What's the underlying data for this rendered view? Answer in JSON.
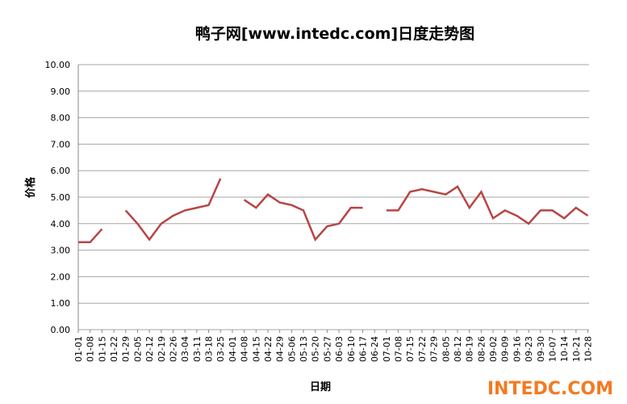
{
  "chart_data": {
    "type": "line",
    "title": "鸭子网[www.intedc.com]日度走势图",
    "x_label": "日期",
    "y_label": "价格",
    "watermark": "INTEDC.COM",
    "categories": [
      "01-01",
      "01-08",
      "01-15",
      "01-22",
      "01-29",
      "02-05",
      "02-12",
      "02-19",
      "02-26",
      "03-04",
      "03-11",
      "03-18",
      "03-25",
      "04-01",
      "04-08",
      "04-15",
      "04-22",
      "04-29",
      "05-06",
      "05-13",
      "05-20",
      "05-27",
      "06-03",
      "06-10",
      "06-17",
      "06-24",
      "07-01",
      "07-08",
      "07-15",
      "07-22",
      "07-29",
      "08-05",
      "08-12",
      "08-19",
      "08-26",
      "09-02",
      "09-09",
      "09-16",
      "09-23",
      "09-30",
      "10-07",
      "10-14",
      "10-21",
      "10-28"
    ],
    "series": [
      {
        "name": "价格",
        "color": "#b84545",
        "values": [
          3.3,
          3.3,
          3.8,
          null,
          4.5,
          4.0,
          3.4,
          4.0,
          4.3,
          4.5,
          4.6,
          4.7,
          5.7,
          null,
          4.9,
          4.6,
          5.1,
          4.8,
          4.7,
          4.5,
          3.4,
          3.9,
          4.0,
          4.6,
          4.6,
          null,
          4.5,
          4.5,
          5.2,
          5.3,
          5.2,
          5.1,
          5.4,
          4.6,
          5.2,
          4.2,
          4.5,
          4.3,
          4.0,
          4.5,
          4.5,
          4.2,
          4.6,
          4.3
        ]
      }
    ],
    "ylim": [
      0,
      10
    ],
    "yticks": [
      {
        "value": 0,
        "label": "0.00"
      },
      {
        "value": 1,
        "label": "1.00"
      },
      {
        "value": 2,
        "label": "2.00"
      },
      {
        "value": 3,
        "label": "3.00"
      },
      {
        "value": 4,
        "label": "4.00"
      },
      {
        "value": 5,
        "label": "5.00"
      },
      {
        "value": 6,
        "label": "6.00"
      },
      {
        "value": 7,
        "label": "7.00"
      },
      {
        "value": 8,
        "label": "8.00"
      },
      {
        "value": 9,
        "label": "9.00"
      },
      {
        "value": 10,
        "label": "10.00"
      }
    ],
    "grid": true
  }
}
